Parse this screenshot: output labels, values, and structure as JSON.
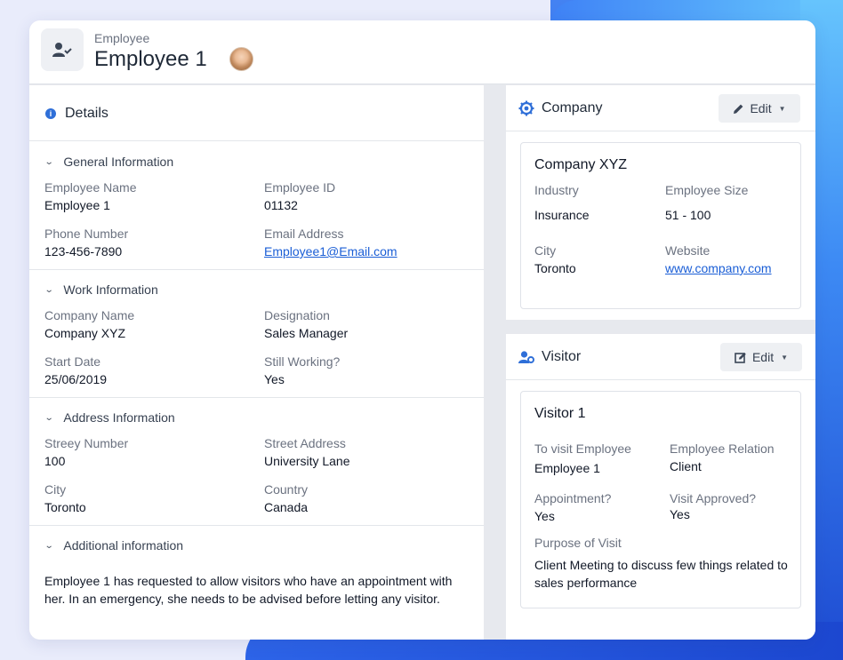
{
  "header": {
    "subtitle": "Employee",
    "title": "Employee 1"
  },
  "details": {
    "title": "Details",
    "sections": [
      {
        "heading": "General Information",
        "fields": [
          {
            "label": "Employee Name",
            "value": "Employee 1"
          },
          {
            "label": "Employee ID",
            "value": "01132"
          },
          {
            "label": "Phone Number",
            "value": "123-456-7890"
          },
          {
            "label": "Email Address",
            "value": "Employee1@Email.com"
          }
        ]
      },
      {
        "heading": "Work Information",
        "fields": [
          {
            "label": "Company Name",
            "value": "Company XYZ"
          },
          {
            "label": "Designation",
            "value": "Sales Manager"
          },
          {
            "label": "Start Date",
            "value": "25/06/2019"
          },
          {
            "label": "Still Working?",
            "value": "Yes"
          }
        ]
      },
      {
        "heading": "Address Information",
        "fields": [
          {
            "label": "Streey Number",
            "value": "100"
          },
          {
            "label": "Street Address",
            "value": "University Lane"
          },
          {
            "label": "City",
            "value": "Toronto"
          },
          {
            "label": "Country",
            "value": "Canada"
          }
        ]
      },
      {
        "heading": "Additional information",
        "text": "Employee 1 has requested to allow visitors who have an appointment with her. In an emergency, she needs to be advised before letting any visitor."
      }
    ]
  },
  "company": {
    "title": "Company",
    "edit_label": "Edit",
    "name": "Company XYZ",
    "fields": [
      {
        "label": "Industry",
        "value": "Insurance"
      },
      {
        "label": "Employee Size",
        "value": "51 - 100"
      },
      {
        "label": "City",
        "value": "Toronto"
      },
      {
        "label": "Website",
        "value": "www.company.com"
      }
    ]
  },
  "visitor": {
    "title": "Visitor",
    "edit_label": "Edit",
    "name": "Visitor 1",
    "fields": [
      {
        "label": "To visit Employee",
        "value": "Employee 1"
      },
      {
        "label": "Employee Relation",
        "value": "Client"
      },
      {
        "label": "Appointment?",
        "value": "Yes"
      },
      {
        "label": "Visit Approved?",
        "value": "Yes"
      },
      {
        "label": "Purpose of Visit",
        "value": "Client Meeting to discuss few things related to sales performance"
      }
    ]
  },
  "colors": {
    "accent": "#2f6fd8",
    "link": "#1a5ed6",
    "background": "#e9ecfb"
  }
}
